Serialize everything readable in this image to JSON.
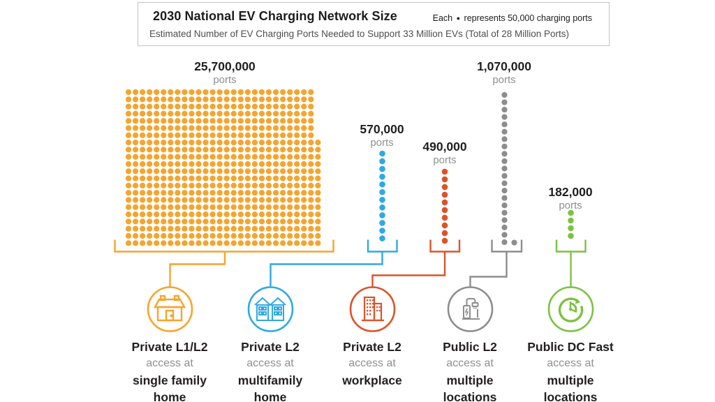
{
  "title_box": {
    "title": "2030 National EV Charging Network Size",
    "legend_prefix": "Each",
    "legend_dot": "●",
    "legend_suffix": "represents 50,000 charging ports",
    "subtitle": "Estimated Number of EV Charging Ports Needed to Support 33 Million EVs (Total of 28 Million Ports)"
  },
  "chart_data": {
    "type": "pictograph",
    "unit_per_dot": 50000,
    "unit_label": "ports",
    "total_note": "Total of 28 Million Ports",
    "supported_evs": "33 Million EVs",
    "categories": [
      {
        "id": "single-family-home",
        "value_label": "25,700,000",
        "ports": 25700000,
        "dots": 514,
        "color": "#F6A42D",
        "type_label": "Private L1/L2",
        "access_label": "access at",
        "location_line1": "single family",
        "location_line2": "home",
        "icon": "house-icon"
      },
      {
        "id": "multifamily-home",
        "value_label": "570,000",
        "ports": 570000,
        "dots": 12,
        "color": "#2FA9E1",
        "type_label": "Private L2",
        "access_label": "access at",
        "location_line1": "multifamily",
        "location_line2": "home",
        "icon": "apartments-icon"
      },
      {
        "id": "workplace",
        "value_label": "490,000",
        "ports": 490000,
        "dots": 10,
        "color": "#DC5328",
        "type_label": "Private L2",
        "access_label": "access at",
        "location_line1": "workplace",
        "location_line2": "",
        "icon": "office-building-icon"
      },
      {
        "id": "public-l2",
        "value_label": "1,070,000",
        "ports": 1070000,
        "dots": 22,
        "color": "#8D8D8D",
        "type_label": "Public L2",
        "access_label": "access at",
        "location_line1": "multiple",
        "location_line2": "locations",
        "icon": "ev-charger-icon"
      },
      {
        "id": "public-dc-fast",
        "value_label": "182,000",
        "ports": 182000,
        "dots": 4,
        "color": "#7CC142",
        "type_label": "Public DC Fast",
        "access_label": "access at",
        "location_line1": "multiple",
        "location_line2": "locations",
        "icon": "fast-charge-clock-icon"
      }
    ]
  }
}
